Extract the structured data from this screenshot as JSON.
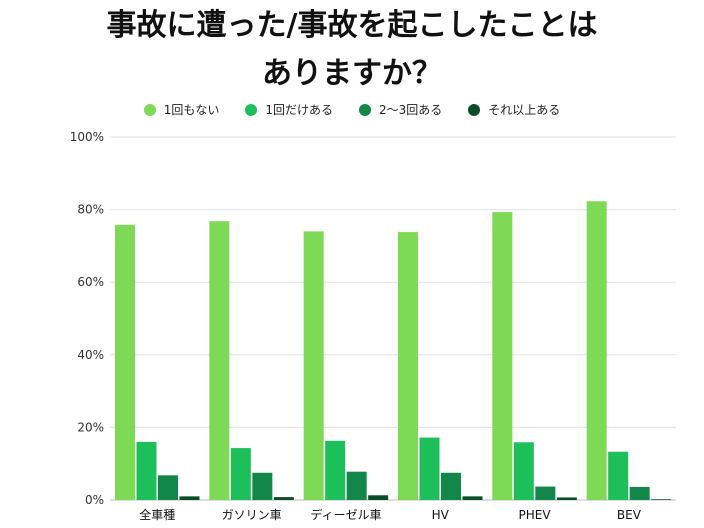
{
  "chart_data": {
    "type": "bar",
    "title": [
      "事故に遭った/事故を起こしたことは",
      "ありますか？"
    ],
    "categories": [
      "全車種",
      "ガソリン車",
      "ディーゼル車",
      "HV",
      "PHEV",
      "BEV"
    ],
    "series": [
      {
        "name": "1回もない",
        "color": "#7ed957",
        "values": [
          75.8,
          76.8,
          74.0,
          73.8,
          79.3,
          82.3
        ]
      },
      {
        "name": "1回だけある",
        "color": "#1dbf5a",
        "values": [
          16.0,
          14.3,
          16.3,
          17.2,
          15.9,
          13.3
        ]
      },
      {
        "name": "2〜3回ある",
        "color": "#13864a",
        "values": [
          6.8,
          7.5,
          7.8,
          7.5,
          3.7,
          3.6
        ]
      },
      {
        "name": "それ以上ある",
        "color": "#0b4d27",
        "values": [
          1.0,
          0.8,
          1.3,
          1.0,
          0.7,
          0.2
        ]
      }
    ],
    "yticks": [
      "0%",
      "20%",
      "40%",
      "60%",
      "80%",
      "100%"
    ],
    "ylim": [
      0,
      100
    ],
    "grid": true,
    "legend_position": "top"
  }
}
